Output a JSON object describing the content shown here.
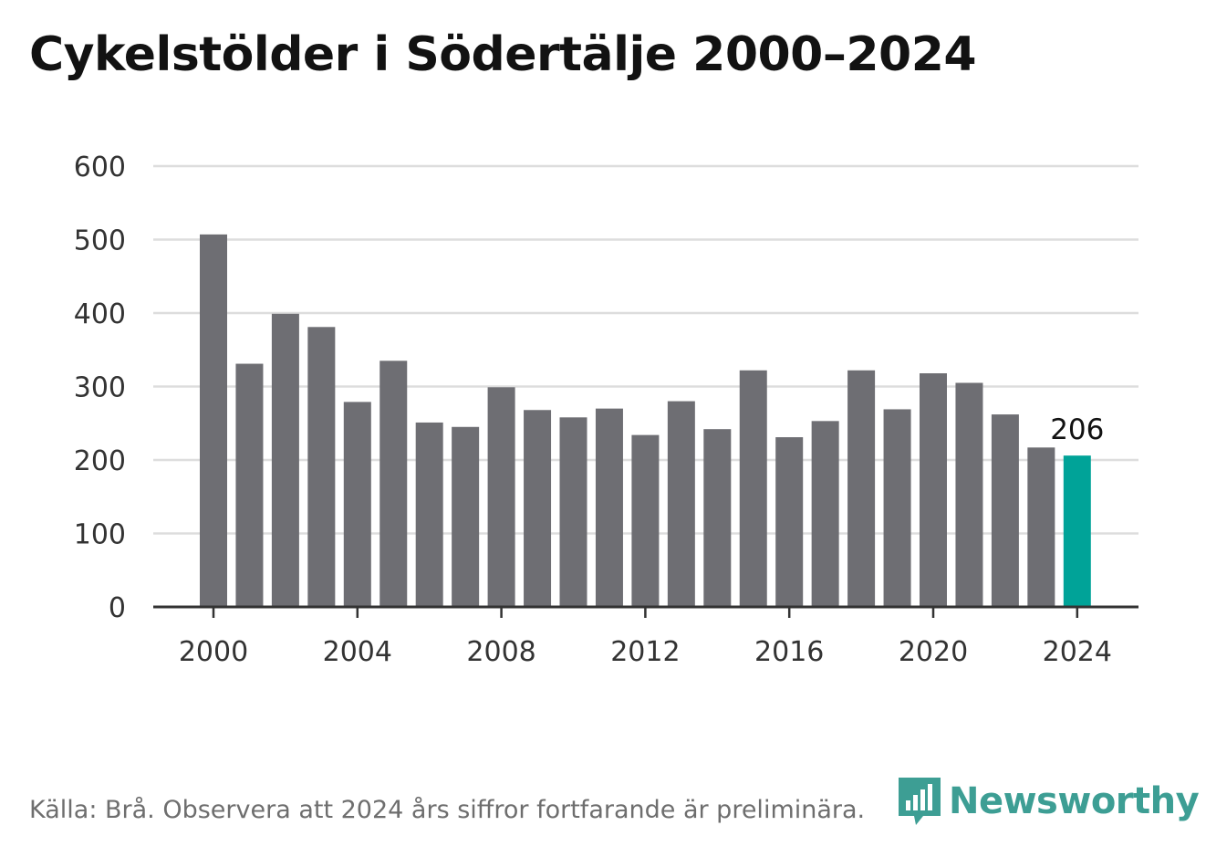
{
  "title": "Cykelstölder i Södertälje 2000–2024",
  "source": "Källa: Brå. Observera att 2024 års siffror fortfarande är preliminära.",
  "logo": {
    "text": "Newsworthy",
    "icon": "newsworthy-chart-icon"
  },
  "colors": {
    "bar": "#6e6e73",
    "highlight": "#00a398",
    "grid": "#dddddd",
    "axis": "#333333",
    "brand": "#3d9e94"
  },
  "chart_data": {
    "type": "bar",
    "title": "Cykelstölder i Södertälje 2000–2024",
    "xlabel": "",
    "ylabel": "",
    "x": [
      2000,
      2001,
      2002,
      2003,
      2004,
      2005,
      2006,
      2007,
      2008,
      2009,
      2010,
      2011,
      2012,
      2013,
      2014,
      2015,
      2016,
      2017,
      2018,
      2019,
      2020,
      2021,
      2022,
      2023,
      2024
    ],
    "values": [
      507,
      331,
      399,
      381,
      279,
      335,
      251,
      245,
      299,
      268,
      258,
      270,
      234,
      280,
      242,
      322,
      231,
      253,
      322,
      269,
      318,
      305,
      262,
      217,
      206
    ],
    "highlight_index": 24,
    "value_labels": [
      {
        "index": 24,
        "text": "206"
      }
    ],
    "ylim": [
      0,
      600
    ],
    "yticks": [
      0,
      100,
      200,
      300,
      400,
      500,
      600
    ],
    "xticks": [
      2000,
      2004,
      2008,
      2012,
      2016,
      2020,
      2024
    ],
    "grid": true,
    "legend": "none"
  }
}
